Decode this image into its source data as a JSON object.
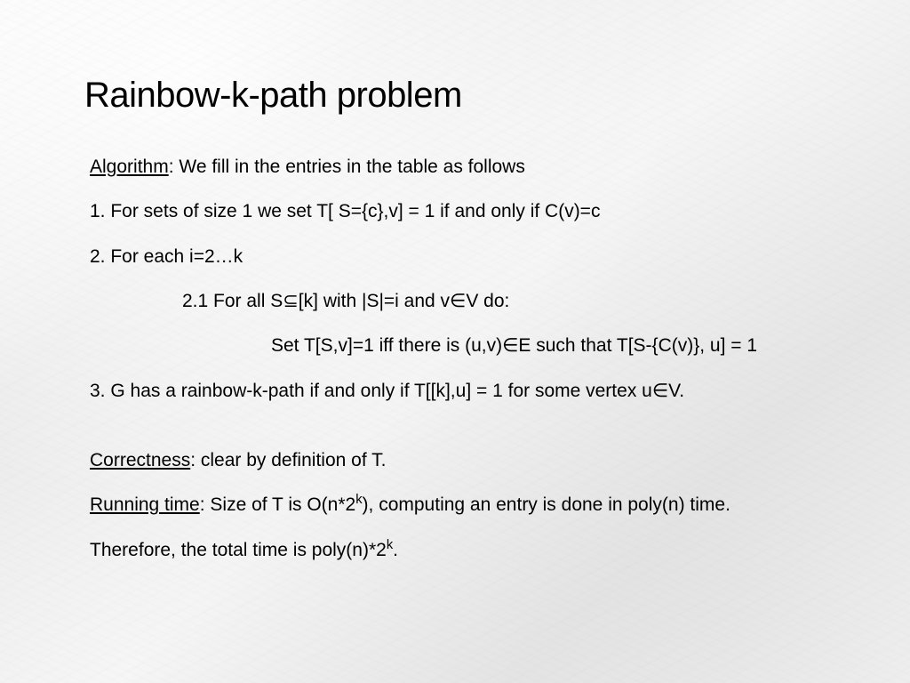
{
  "slide": {
    "title": "Rainbow-k-path problem",
    "algo_label": "Algorithm",
    "algo_intro": ": We fill in the entries in the table as follows",
    "step1": "1.   For sets of size 1 we set T[ S={c},v] = 1 if and only if C(v)=c",
    "step2": "2.   For each i=2…k",
    "step2_1": "2.1 For all S⊆[k] with |S|=i and v∈V do:",
    "step2_1_body": "Set T[S,v]=1 iff there is (u,v)∈E such that T[S-{C(v)}, u] = 1",
    "step3": "3.   G has a rainbow-k-path if and only if T[[k],u] = 1 for some vertex u∈V.",
    "correctness_label": "Correctness",
    "correctness_text": ": clear by definition of T.",
    "runtime_label": "Running time",
    "runtime_text_a": ": Size of T is O(n*2",
    "runtime_text_b": "), computing an entry is done in poly(n) time.",
    "therefore_a": "Therefore, the total time is poly(n)*2",
    "therefore_b": ".",
    "exp_k": "k",
    "style": {
      "text_color": "#000000",
      "background_base": "#f5f5f5",
      "title_fontsize": 40,
      "body_fontsize": 21,
      "font_family": "Arial"
    }
  }
}
